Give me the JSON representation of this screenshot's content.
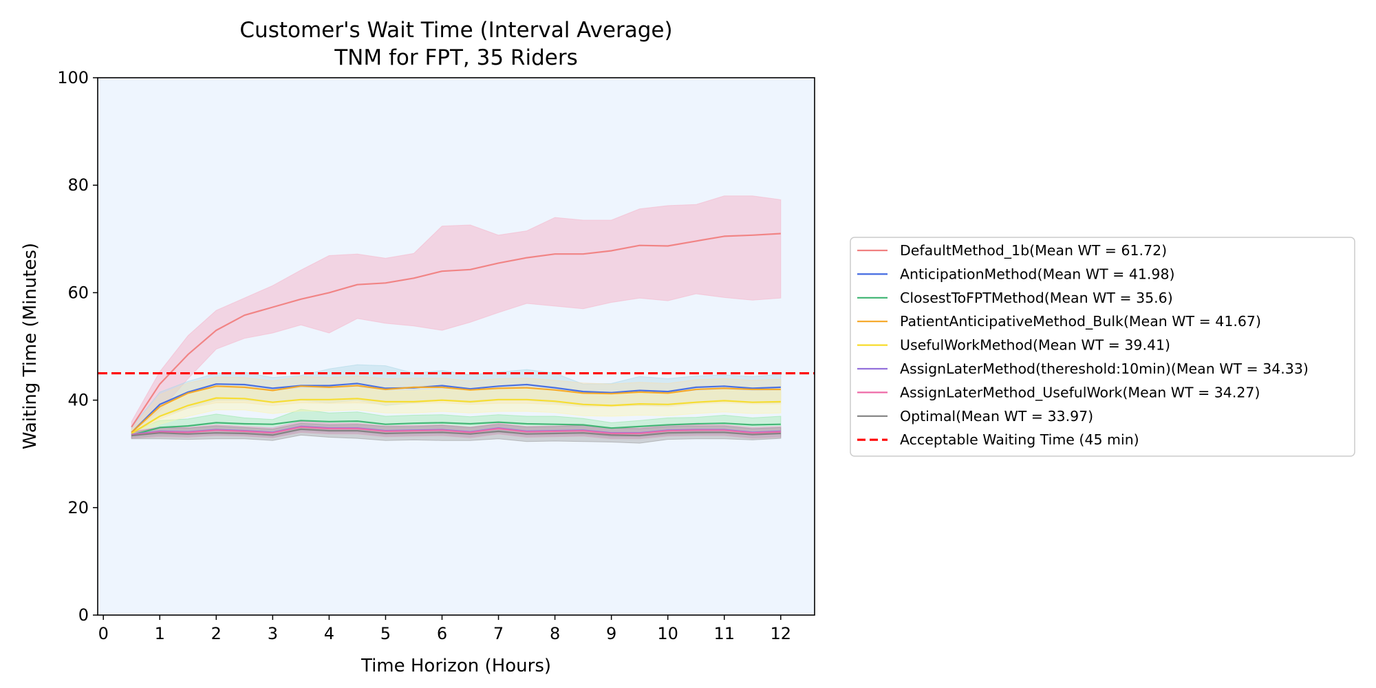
{
  "chart_data": {
    "type": "line",
    "title": "Customer's Wait Time (Interval Average)",
    "subtitle": "TNM for FPT, 35 Riders",
    "xlabel": "Time Horizon (Hours)",
    "ylabel": "Waiting Time (Minutes)",
    "xlim": [
      -0.1,
      12.6
    ],
    "ylim": [
      0,
      100
    ],
    "x_ticks": [
      0,
      1,
      2,
      3,
      4,
      5,
      6,
      7,
      8,
      9,
      10,
      11,
      12
    ],
    "y_ticks": [
      0,
      20,
      40,
      60,
      80,
      100
    ],
    "grid": false,
    "legend_position": "right-outside",
    "plot_background": "#eef5fe",
    "x": [
      0.5,
      1,
      1.5,
      2,
      2.5,
      3,
      3.5,
      4,
      4.5,
      5,
      5.5,
      6,
      6.5,
      7,
      7.5,
      8,
      8.5,
      9,
      9.5,
      10,
      10.5,
      11,
      11.5,
      12
    ],
    "series": [
      {
        "name": "DefaultMethod_1b(Mean WT = 61.72)",
        "color": "#f08080",
        "band_color": "#f5b8cc",
        "values": [
          35,
          43,
          48.5,
          53,
          55.8,
          57.3,
          58.8,
          60,
          61.5,
          61.8,
          62.7,
          64,
          64.3,
          65.5,
          66.5,
          67.2,
          67.2,
          67.8,
          68.8,
          68.7,
          69.6,
          70.5,
          70.7,
          71
        ],
        "lower": [
          34,
          38,
          44,
          49.5,
          51.5,
          52.5,
          54,
          52.5,
          55.2,
          54.3,
          53.8,
          53,
          54.5,
          56.3,
          58,
          57.5,
          57,
          58.2,
          59,
          58.5,
          59.8,
          59.1,
          58.6,
          59
        ],
        "upper": [
          36,
          45.3,
          52,
          56.7,
          59,
          61.3,
          64.2,
          66.9,
          67.2,
          66.4,
          67.3,
          72.4,
          72.6,
          70.7,
          71.5,
          74,
          73.5,
          73.5,
          75.6,
          76.2,
          76.4,
          78,
          78,
          77.3
        ]
      },
      {
        "name": "AnticipationMethod(Mean WT = 41.98)",
        "color": "#4169e1",
        "band_color": "#add8e6",
        "values": [
          34,
          39.2,
          41.5,
          43,
          42.9,
          42.2,
          42.7,
          42.7,
          43.1,
          42.2,
          42.3,
          42.7,
          42.1,
          42.6,
          42.9,
          42.3,
          41.6,
          41.4,
          41.8,
          41.6,
          42.4,
          42.6,
          42.2,
          42.4
        ],
        "lower": [
          33.5,
          37,
          38.5,
          40,
          40,
          39.6,
          40,
          39.5,
          40,
          39,
          39.5,
          40,
          39.5,
          40,
          40,
          39.5,
          39,
          39,
          39,
          39,
          39.5,
          39.8,
          39.5,
          39.5
        ],
        "upper": [
          35,
          41.5,
          43.5,
          45,
          45.2,
          44.2,
          44.6,
          45.8,
          46.6,
          46.4,
          45,
          45.5,
          44.7,
          45.2,
          45.7,
          45,
          43,
          43.1,
          44.4,
          44,
          44.5,
          44.7,
          44.4,
          44.8
        ]
      },
      {
        "name": "ClosestToFPTMethod(Mean WT = 35.6)",
        "color": "#3cb371",
        "band_color": "#98e8a8",
        "values": [
          33.5,
          34.9,
          35.2,
          35.8,
          35.6,
          35.5,
          36.2,
          36,
          36.1,
          35.5,
          35.7,
          35.8,
          35.6,
          35.9,
          35.6,
          35.5,
          35.4,
          34.8,
          35.1,
          35.4,
          35.6,
          35.7,
          35.4,
          35.5
        ],
        "lower": [
          33,
          33.5,
          33.6,
          34,
          34,
          33.7,
          34.4,
          34.3,
          34.3,
          33.8,
          34,
          34,
          33.8,
          34,
          33.8,
          33.8,
          33.7,
          33.2,
          33.3,
          33.6,
          33.8,
          34,
          33.6,
          33.8
        ],
        "upper": [
          34.2,
          36.2,
          36.5,
          37.4,
          36.7,
          36.4,
          38.3,
          37.6,
          37.8,
          37,
          37.2,
          37.3,
          36.9,
          37.3,
          37,
          37,
          36.6,
          35.8,
          36.2,
          36.7,
          36.8,
          37.2,
          36.7,
          37
        ]
      },
      {
        "name": "PatientAnticipativeMethod_Bulk(Mean WT = 41.67)",
        "color": "#f5a623",
        "band_color": "#f5deb3",
        "values": [
          34,
          38.8,
          41.3,
          42.6,
          42.4,
          41.8,
          42.6,
          42.4,
          42.7,
          42,
          42.4,
          42.4,
          41.9,
          42.2,
          42.3,
          41.9,
          41.3,
          41.2,
          41.5,
          41.3,
          42,
          42.2,
          42,
          42
        ],
        "lower": [
          33.5,
          36.5,
          38.5,
          39.5,
          39.5,
          39,
          39.5,
          39.4,
          39.5,
          39.2,
          39.4,
          39.5,
          39.2,
          39.4,
          39.4,
          39.2,
          38.8,
          38.8,
          39,
          38.8,
          39.3,
          39.5,
          39.3,
          39.3
        ],
        "upper": [
          34.6,
          41,
          43.2,
          44.3,
          44.2,
          43.6,
          44.4,
          44.2,
          44.5,
          44,
          44.1,
          44.1,
          43.6,
          44,
          44.1,
          43.7,
          43.2,
          43,
          43.3,
          43.1,
          43.8,
          44,
          43.7,
          43.9
        ]
      },
      {
        "name": "UsefulWorkMethod(Mean WT = 39.41)",
        "color": "#f7dc2a",
        "band_color": "#fdf5b0",
        "values": [
          33.8,
          37,
          39,
          40.4,
          40.3,
          39.6,
          40.1,
          40.1,
          40.3,
          39.7,
          39.7,
          40,
          39.7,
          40.1,
          40.1,
          39.8,
          39.2,
          39,
          39.3,
          39.2,
          39.6,
          39.9,
          39.6,
          39.7
        ],
        "lower": [
          33.4,
          35.5,
          37,
          38.2,
          38.2,
          37.5,
          38,
          38,
          38.2,
          37.6,
          37.6,
          37.9,
          37.6,
          37.9,
          37.9,
          37.7,
          37.1,
          37,
          37.2,
          37.1,
          37.5,
          37.8,
          37.5,
          37.6
        ],
        "upper": [
          34.3,
          38.7,
          41,
          42.5,
          42.3,
          41.6,
          42.1,
          42.1,
          42.3,
          41.7,
          41.7,
          42,
          41.7,
          42.1,
          42.1,
          41.8,
          41.2,
          41,
          41.3,
          41.2,
          41.6,
          41.9,
          41.6,
          41.7
        ]
      },
      {
        "name": "AssignLaterMethod(thereshold:10min)(Mean WT = 34.33)",
        "color": "#9370db",
        "band_color": "#c8b6e8",
        "values": [
          33.6,
          34.2,
          34.1,
          34.5,
          34.3,
          34,
          35.1,
          34.8,
          34.8,
          34.3,
          34.4,
          34.5,
          34.1,
          34.8,
          34.2,
          34.3,
          34.4,
          33.9,
          33.9,
          34.4,
          34.5,
          34.5,
          34,
          34.2
        ],
        "lower": [
          33,
          33.4,
          33.3,
          33.6,
          33.5,
          33.1,
          34.2,
          33.9,
          33.9,
          33.4,
          33.5,
          33.6,
          33.2,
          33.9,
          33.3,
          33.4,
          33.5,
          33,
          33,
          33.5,
          33.6,
          33.6,
          33.1,
          33.3
        ],
        "upper": [
          34.2,
          35,
          34.9,
          35.4,
          35.1,
          34.9,
          36,
          35.7,
          35.7,
          35.2,
          35.3,
          35.4,
          35,
          35.7,
          35.1,
          35.2,
          35.3,
          34.8,
          34.8,
          35.3,
          35.4,
          35.4,
          34.9,
          35.1
        ]
      },
      {
        "name": "AssignLaterMethod_UsefulWork(Mean WT = 34.27)",
        "color": "#ee6aa7",
        "band_color": "#f4a6c8",
        "values": [
          33.5,
          34.1,
          34,
          34.4,
          34.2,
          33.9,
          35,
          34.7,
          34.7,
          34.2,
          34.3,
          34.4,
          34,
          34.7,
          34.1,
          34.2,
          34.3,
          33.8,
          33.8,
          34.3,
          34.4,
          34.4,
          33.9,
          34.1
        ],
        "lower": [
          32.9,
          33.2,
          33.1,
          33.4,
          33.3,
          33,
          34,
          33.7,
          33.7,
          33.2,
          33.3,
          33.4,
          33,
          33.7,
          33.1,
          33.2,
          33.3,
          32.8,
          32.8,
          33.3,
          33.4,
          33.4,
          32.9,
          33.1
        ],
        "upper": [
          34.1,
          35,
          34.9,
          35.4,
          35.1,
          34.8,
          36,
          35.7,
          35.7,
          35.2,
          35.3,
          35.4,
          35,
          35.7,
          35.1,
          35.2,
          35.3,
          34.8,
          34.8,
          35.3,
          35.4,
          35.4,
          34.9,
          35.1
        ]
      },
      {
        "name": "Optimal(Mean WT = 33.97)",
        "color": "#808080",
        "band_color": "#9a9a9a",
        "values": [
          33.4,
          33.9,
          33.7,
          33.9,
          33.8,
          33.5,
          34.6,
          34.3,
          34.3,
          33.8,
          33.9,
          34,
          33.7,
          34.2,
          33.7,
          33.8,
          33.9,
          33.5,
          33.4,
          33.9,
          34,
          34,
          33.6,
          33.8
        ],
        "lower": [
          32.8,
          32.8,
          32.7,
          32.8,
          32.8,
          32.5,
          33.5,
          33.1,
          32.9,
          32.5,
          32.6,
          32.5,
          32.5,
          32.8,
          32.3,
          32.4,
          32.3,
          32.2,
          32,
          32.7,
          32.8,
          32.8,
          32.6,
          32.9
        ],
        "upper": [
          34,
          34.9,
          34.8,
          35.2,
          34.9,
          34.6,
          35.7,
          35.4,
          35.5,
          35.1,
          35.1,
          35.3,
          34.9,
          35.5,
          35,
          35.1,
          35.3,
          34.8,
          34.7,
          35.1,
          35.2,
          35.2,
          34.7,
          34.9
        ]
      }
    ],
    "reference_line": {
      "name": "Acceptable Waiting Time (45 min)",
      "y": 45,
      "color": "#ff0000",
      "style": "dashed"
    }
  }
}
